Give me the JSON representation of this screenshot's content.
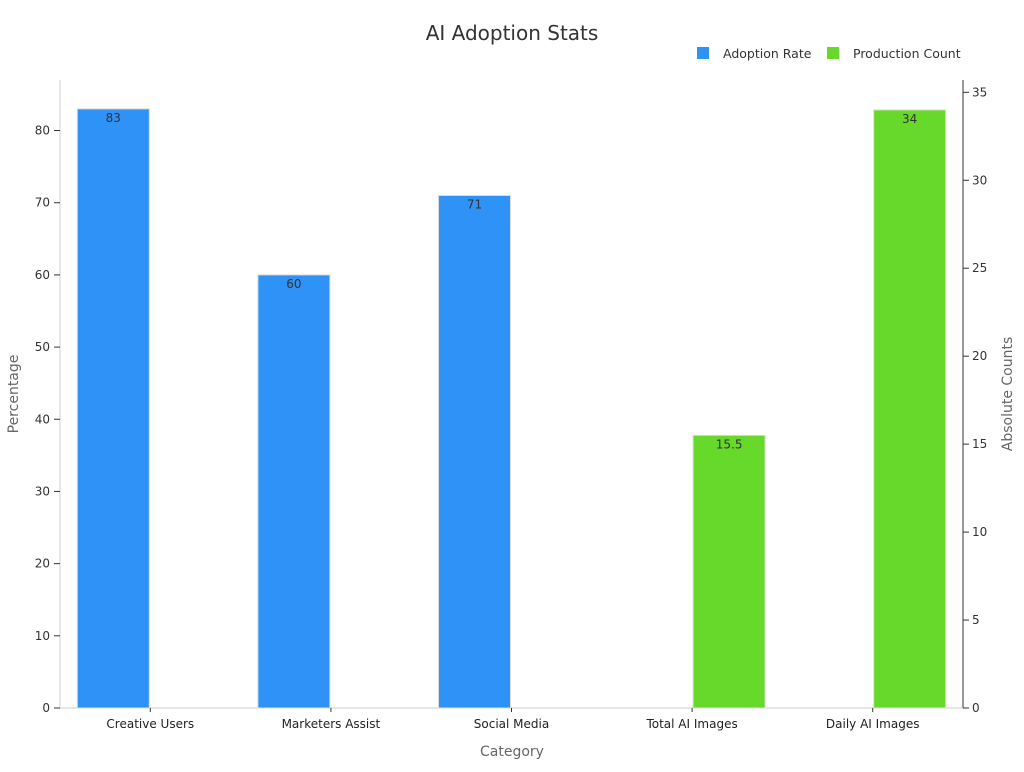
{
  "chart_data": {
    "type": "bar",
    "title": "AI Adoption Stats",
    "xlabel": "Category",
    "ylabel": "Percentage",
    "y2label": "Absolute Counts",
    "categories": [
      "Creative Users",
      "Marketers Assist",
      "Social Media",
      "Total AI Images",
      "Daily AI Images"
    ],
    "series": [
      {
        "name": "Adoption Rate",
        "axis": "left",
        "color": "#2f92f7",
        "values": [
          83,
          60,
          71,
          null,
          null
        ],
        "labels": [
          "83",
          "60",
          "71",
          "",
          ""
        ]
      },
      {
        "name": "Production Count",
        "axis": "right",
        "color": "#66d92a",
        "values": [
          null,
          null,
          null,
          15.5,
          34
        ],
        "labels": [
          "",
          "",
          "",
          "15.5",
          "34"
        ]
      }
    ],
    "ylim": [
      0,
      87
    ],
    "y2lim": [
      0,
      35.7
    ],
    "yticks": [
      0,
      10,
      20,
      30,
      40,
      50,
      60,
      70,
      80
    ],
    "y2ticks": [
      0,
      5,
      10,
      15,
      20,
      25,
      30,
      35
    ],
    "legend_position": "top-right",
    "grid": false
  }
}
